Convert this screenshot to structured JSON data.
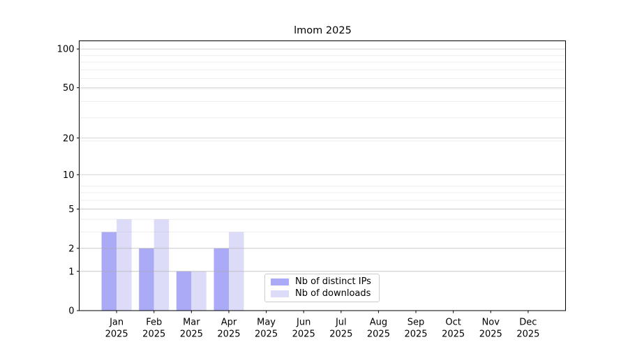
{
  "chart_data": {
    "type": "bar",
    "title": "lmom 2025",
    "categories": [
      "Jan",
      "Feb",
      "Mar",
      "Apr",
      "May",
      "Jun",
      "Jul",
      "Aug",
      "Sep",
      "Oct",
      "Nov",
      "Dec"
    ],
    "x_tick_year": "2025",
    "series": [
      {
        "name": "Nb of distinct IPs",
        "color": "#aaaaf6",
        "values": [
          3,
          2,
          1,
          2,
          0,
          0,
          0,
          0,
          0,
          0,
          0,
          0
        ]
      },
      {
        "name": "Nb of downloads",
        "color": "#dcdcf8",
        "values": [
          4,
          4,
          1,
          3,
          0,
          0,
          0,
          0,
          0,
          0,
          0,
          0
        ]
      }
    ],
    "y_ticks": [
      0,
      1,
      2,
      5,
      10,
      20,
      50,
      100
    ],
    "y_scale": "log10(1+value)",
    "ylim": [
      0,
      115
    ],
    "xlabel": "",
    "ylabel": "",
    "grid": "horizontal major+minor",
    "legend_position": "lower center inside",
    "colors": {
      "axis": "#000000",
      "text": "#000000",
      "major_grid": "#b0b0b0",
      "minor_grid": "#b0b0b0",
      "background": "#ffffff"
    }
  }
}
